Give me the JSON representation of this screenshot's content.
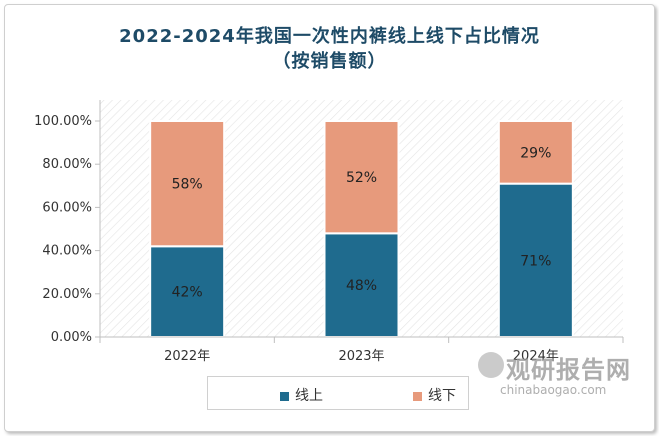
{
  "chart_data": {
    "type": "bar",
    "stacked": true,
    "title": "2022-2024年我国一次性内裤线上线下占比情况",
    "subtitle": "（按销售额）",
    "categories": [
      "2022年",
      "2023年",
      "2024年"
    ],
    "series": [
      {
        "name": "线上",
        "values": [
          42,
          48,
          71
        ],
        "labels": [
          "42%",
          "48%",
          "71%"
        ],
        "color": "#1f6b8e"
      },
      {
        "name": "线下",
        "values": [
          58,
          52,
          29
        ],
        "labels": [
          "58%",
          "52%",
          "29%"
        ],
        "color": "#e79a7c"
      }
    ],
    "yticks": [
      "0.00%",
      "20.00%",
      "40.00%",
      "60.00%",
      "80.00%",
      "100.00%"
    ],
    "ylim": [
      0,
      100
    ],
    "legend": "bottom",
    "grid": false
  },
  "watermark": {
    "cn": "观研报告网",
    "en": "chinabaogao.com"
  }
}
